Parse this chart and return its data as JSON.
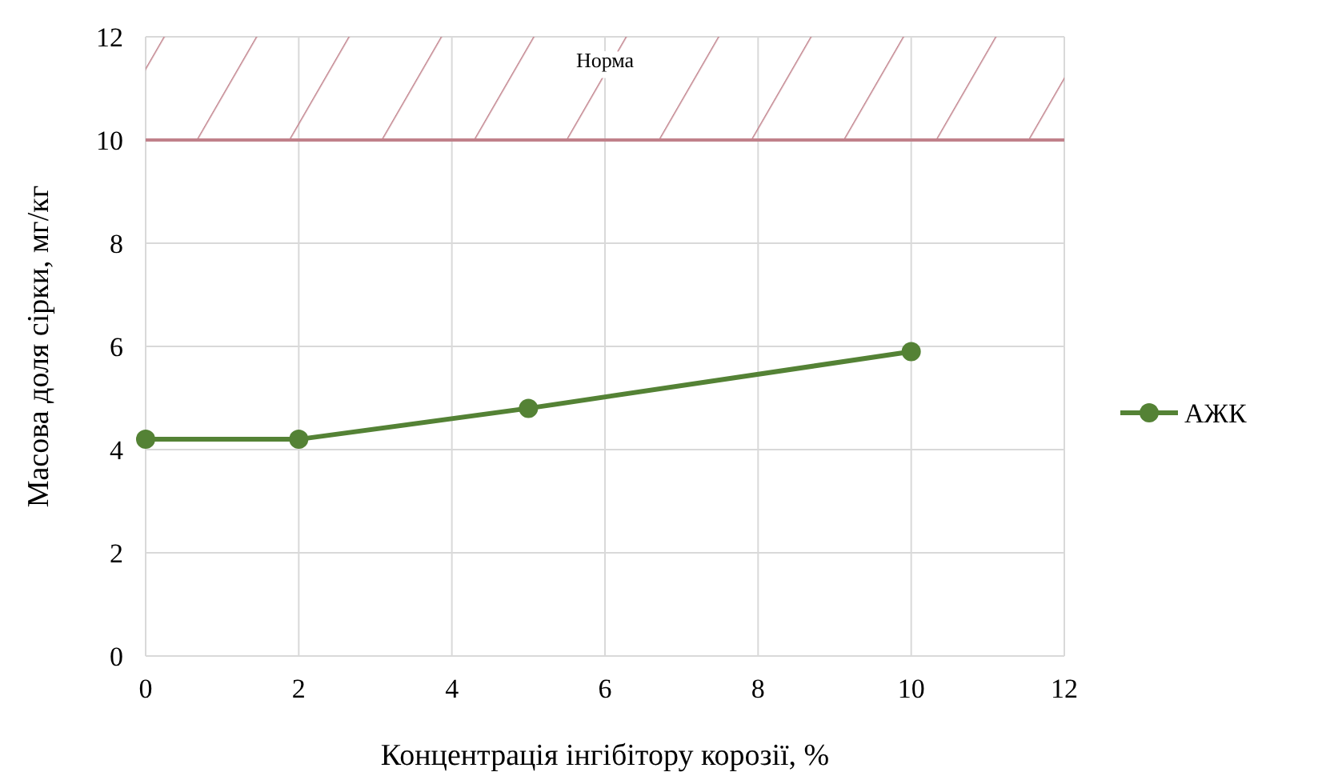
{
  "chart_data": {
    "type": "line",
    "xlabel": "Концентрація інгібітору корозії, %",
    "ylabel": "Масова доля сірки, мг/кг",
    "x": [
      0,
      2,
      5,
      10
    ],
    "series": [
      {
        "name": "АЖК",
        "color": "#548235",
        "values": [
          4.2,
          4.2,
          4.8,
          5.9
        ]
      }
    ],
    "xlim": [
      0,
      12
    ],
    "xticks": [
      0,
      2,
      4,
      6,
      8,
      10,
      12
    ],
    "ylim": [
      0,
      12
    ],
    "yticks": [
      0,
      2,
      4,
      6,
      8,
      10,
      12
    ],
    "bands": [
      {
        "axis": "y",
        "from": 10,
        "to": 12,
        "label": "Норма",
        "color": "#c0808a"
      }
    ],
    "ref_lines": [
      {
        "axis": "y",
        "value": 10,
        "color": "#c0808a"
      }
    ],
    "grid": true,
    "legend": "right",
    "marker": "circle",
    "line_style": "solid"
  }
}
